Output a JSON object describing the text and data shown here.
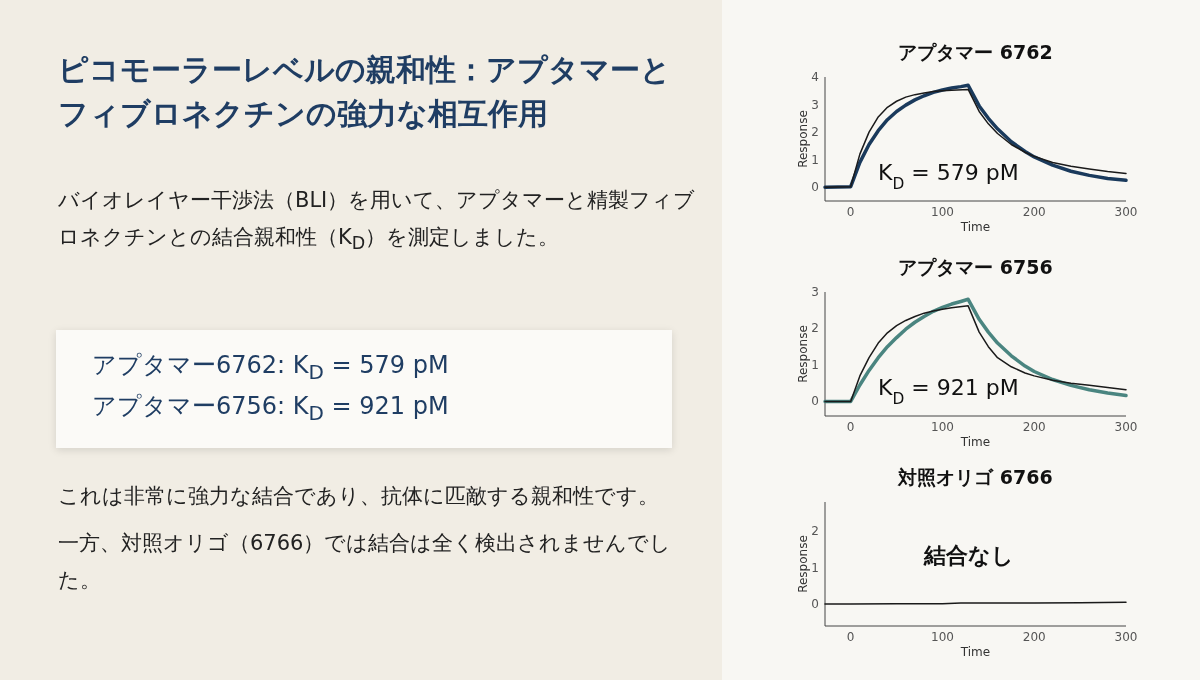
{
  "chart_data": [
    {
      "type": "other",
      "title": "ピコモーラーレベルの親和性：アプタマーとフィブロネクチンの強力な相互作用",
      "annotations": [
        "バイオレイヤー干渉法（BLI）を用いて、アプタマーと精製フィブロネクチンとの結合親和性（K$_{D}$）を測定しました。"
      ]
    },
    {
      "type": "other",
      "annotations": [
        "アプタマー6762: K$_{D}$ = 579 pM",
        "アプタマー6756: K$_{D}$ = 921 pM"
      ]
    },
    {
      "type": "other",
      "annotations": [
        "これは非常に強力な結合であり、抗体に匹敵する親和性です。",
        "一方、対照オリゴ（6766）では結合は全く検出されませんでした。"
      ]
    },
    {
      "type": "line",
      "title": "アプタマー 6762",
      "xlabel": "Time",
      "ylabel": "Response",
      "xlim": [
        -28,
        300
      ],
      "xticks": [
        0,
        100,
        200,
        300
      ],
      "ylim": [
        -0.5,
        4
      ],
      "yticks": [
        0,
        1,
        2,
        3,
        4
      ],
      "annotations": [
        "K$_{D}$ = 579 pM"
      ],
      "series": [
        {
          "color": "#1a3a5c",
          "x": [
            -28,
            0,
            10,
            20,
            30,
            40,
            50,
            60,
            70,
            80,
            90,
            100,
            110,
            120,
            128,
            140,
            150,
            160,
            175,
            190,
            200,
            220,
            240,
            260,
            280,
            300
          ],
          "values": [
            0,
            0.02,
            0.9,
            1.55,
            2.05,
            2.45,
            2.75,
            2.98,
            3.17,
            3.32,
            3.44,
            3.53,
            3.6,
            3.65,
            3.7,
            2.95,
            2.5,
            2.12,
            1.65,
            1.3,
            1.1,
            0.8,
            0.58,
            0.43,
            0.32,
            0.25
          ]
        },
        {
          "color": "#1a1a1a",
          "x": [
            -28,
            0,
            10,
            20,
            30,
            40,
            50,
            60,
            70,
            80,
            90,
            100,
            110,
            128,
            140,
            150,
            160,
            175,
            190,
            200,
            220,
            240,
            260,
            280,
            300
          ],
          "values": [
            0,
            0.02,
            1.2,
            2.0,
            2.55,
            2.9,
            3.12,
            3.27,
            3.36,
            3.42,
            3.47,
            3.5,
            3.52,
            3.55,
            2.75,
            2.3,
            1.95,
            1.55,
            1.27,
            1.12,
            0.9,
            0.76,
            0.66,
            0.57,
            0.5
          ]
        }
      ]
    },
    {
      "type": "line",
      "title": "アプタマー 6756",
      "xlabel": "Time",
      "ylabel": "Response",
      "xlim": [
        -28,
        300
      ],
      "xticks": [
        0,
        100,
        200,
        300
      ],
      "ylim": [
        -0.4,
        3
      ],
      "yticks": [
        0,
        1,
        2,
        3
      ],
      "annotations": [
        "K$_{D}$ = 921 pM"
      ],
      "series": [
        {
          "color": "#4a8580",
          "x": [
            -28,
            0,
            10,
            20,
            30,
            40,
            50,
            60,
            70,
            80,
            90,
            100,
            110,
            120,
            128,
            140,
            150,
            160,
            175,
            190,
            200,
            220,
            240,
            260,
            280,
            300
          ],
          "values": [
            0,
            0,
            0.45,
            0.85,
            1.2,
            1.5,
            1.75,
            1.98,
            2.17,
            2.33,
            2.47,
            2.58,
            2.67,
            2.74,
            2.8,
            2.25,
            1.9,
            1.6,
            1.25,
            0.97,
            0.82,
            0.6,
            0.44,
            0.32,
            0.23,
            0.16
          ]
        },
        {
          "color": "#1a1a1a",
          "x": [
            -28,
            0,
            10,
            20,
            30,
            40,
            50,
            60,
            70,
            80,
            90,
            100,
            110,
            128,
            140,
            150,
            160,
            175,
            190,
            200,
            220,
            240,
            260,
            280,
            300
          ],
          "values": [
            0,
            0,
            0.7,
            1.2,
            1.6,
            1.88,
            2.08,
            2.22,
            2.33,
            2.42,
            2.48,
            2.53,
            2.57,
            2.62,
            1.9,
            1.5,
            1.2,
            0.95,
            0.78,
            0.7,
            0.58,
            0.5,
            0.44,
            0.38,
            0.32
          ]
        }
      ]
    },
    {
      "type": "line",
      "title": "対照オリゴ 6766",
      "xlabel": "Time",
      "ylabel": "Response",
      "xlim": [
        -28,
        300
      ],
      "xticks": [
        0,
        100,
        200,
        300
      ],
      "ylim": [
        -0.6,
        2.8
      ],
      "yticks": [
        0,
        1,
        2
      ],
      "annotations": [
        "結合なし"
      ],
      "series": [
        {
          "color": "#1a1a1a",
          "x": [
            -28,
            0,
            50,
            100,
            120,
            150,
            200,
            250,
            300
          ],
          "values": [
            0,
            0,
            0.01,
            0.01,
            0.03,
            0.03,
            0.03,
            0.04,
            0.05
          ]
        }
      ]
    }
  ]
}
